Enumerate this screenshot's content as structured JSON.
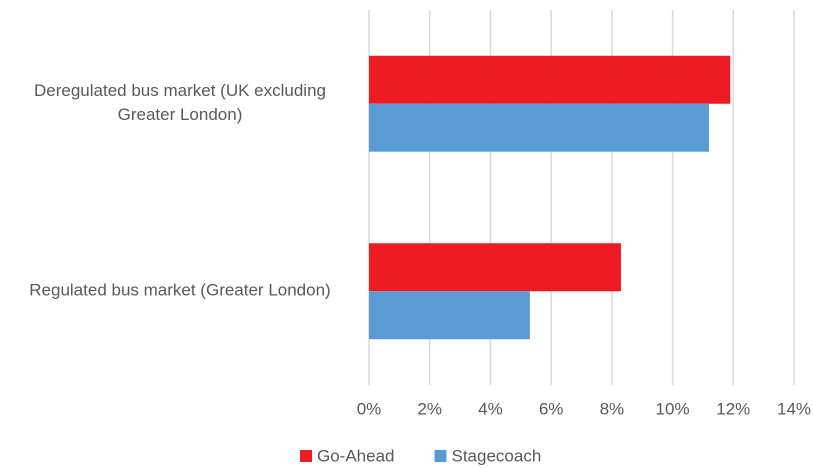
{
  "chart_data": {
    "type": "barh",
    "categories": [
      "Deregulated bus market (UK excluding Greater London)",
      "Regulated bus market (Greater London)"
    ],
    "series": [
      {
        "name": "Go-Ahead",
        "color": "#ed1c24",
        "values": [
          11.9,
          8.3
        ]
      },
      {
        "name": "Stagecoach",
        "color": "#5b9bd5",
        "values": [
          11.2,
          5.3
        ]
      }
    ],
    "xlim": [
      0,
      14
    ],
    "xticks": [
      {
        "value": 0,
        "label": "0%"
      },
      {
        "value": 2,
        "label": "2%"
      },
      {
        "value": 4,
        "label": "4%"
      },
      {
        "value": 6,
        "label": "6%"
      },
      {
        "value": 8,
        "label": "8%"
      },
      {
        "value": 10,
        "label": "10%"
      },
      {
        "value": 12,
        "label": "12%"
      },
      {
        "value": 14,
        "label": "14%"
      }
    ],
    "grid": true,
    "legend": "bottom"
  }
}
